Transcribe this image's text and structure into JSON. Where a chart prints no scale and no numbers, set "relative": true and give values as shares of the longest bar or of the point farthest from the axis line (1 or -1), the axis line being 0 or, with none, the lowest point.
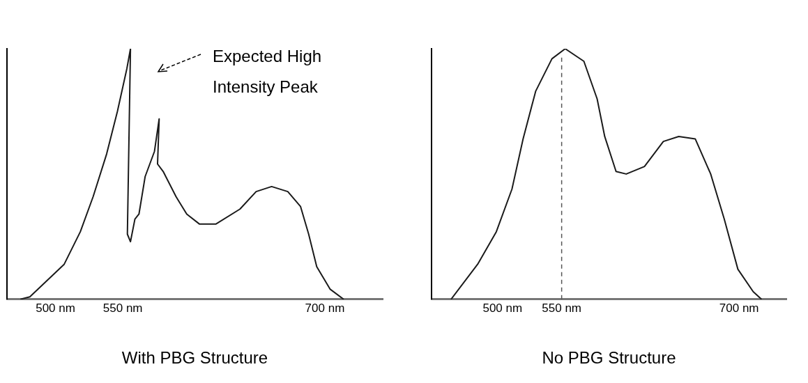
{
  "chart_data": [
    {
      "type": "line",
      "title": "With PBG Structure",
      "relative": true,
      "tick_labels": "x",
      "grid": false,
      "legend": false,
      "marker": "none",
      "line_style": "solid",
      "xlim": [
        464,
        743
      ],
      "xticks": [
        {
          "value": 500,
          "label": "500 nm"
        },
        {
          "value": 550,
          "label": "550 nm"
        },
        {
          "value": 700,
          "label": "700 nm"
        }
      ],
      "annotations": [
        "Expected High Intensity Peak"
      ],
      "series": [
        {
          "color": "#1a1a1a",
          "x": [
            474,
            481,
            506.5,
            518.5,
            528,
            538,
            546,
            553,
            555.7,
            553.4,
            555.7,
            559,
            562,
            566.6,
            573.5,
            577,
            575.8,
            580,
            589.5,
            597.5,
            607,
            619,
            637,
            649,
            660.5,
            672.5,
            682,
            688,
            694,
            704,
            714
          ],
          "values": [
            0,
            0.01,
            0.14,
            0.27,
            0.41,
            0.58,
            0.75,
            0.92,
            1.0,
            0.26,
            0.23,
            0.32,
            0.34,
            0.49,
            0.59,
            0.72,
            0.54,
            0.51,
            0.41,
            0.34,
            0.3,
            0.3,
            0.36,
            0.43,
            0.45,
            0.43,
            0.37,
            0.26,
            0.13,
            0.04,
            0.0
          ]
        }
      ]
    },
    {
      "type": "line",
      "title": "No PBG Structure",
      "relative": true,
      "tick_labels": "x",
      "grid": false,
      "legend": false,
      "marker": "none",
      "line_style": "solid",
      "xlim": [
        440,
        740
      ],
      "xticks": [
        {
          "value": 500,
          "label": "500 nm"
        },
        {
          "value": 550,
          "label": "550 nm"
        },
        {
          "value": 700,
          "label": "700 nm"
        }
      ],
      "ref_lines": [
        {
          "axis": "x",
          "value": 550,
          "line_style": "dashed",
          "color": "#555555"
        }
      ],
      "series": [
        {
          "color": "#1a1a1a",
          "x": [
            456.5,
            479,
            494.8,
            508,
            517.4,
            528,
            541.8,
            553,
            568.8,
            580,
            586.4,
            596,
            604.6,
            620,
            636,
            649,
            663,
            676,
            687.5,
            699,
            712,
            719
          ],
          "values": [
            0,
            0.14,
            0.27,
            0.44,
            0.64,
            0.83,
            0.96,
            1.0,
            0.95,
            0.8,
            0.65,
            0.51,
            0.5,
            0.53,
            0.63,
            0.65,
            0.64,
            0.5,
            0.32,
            0.12,
            0.03,
            0.0
          ]
        }
      ]
    }
  ]
}
